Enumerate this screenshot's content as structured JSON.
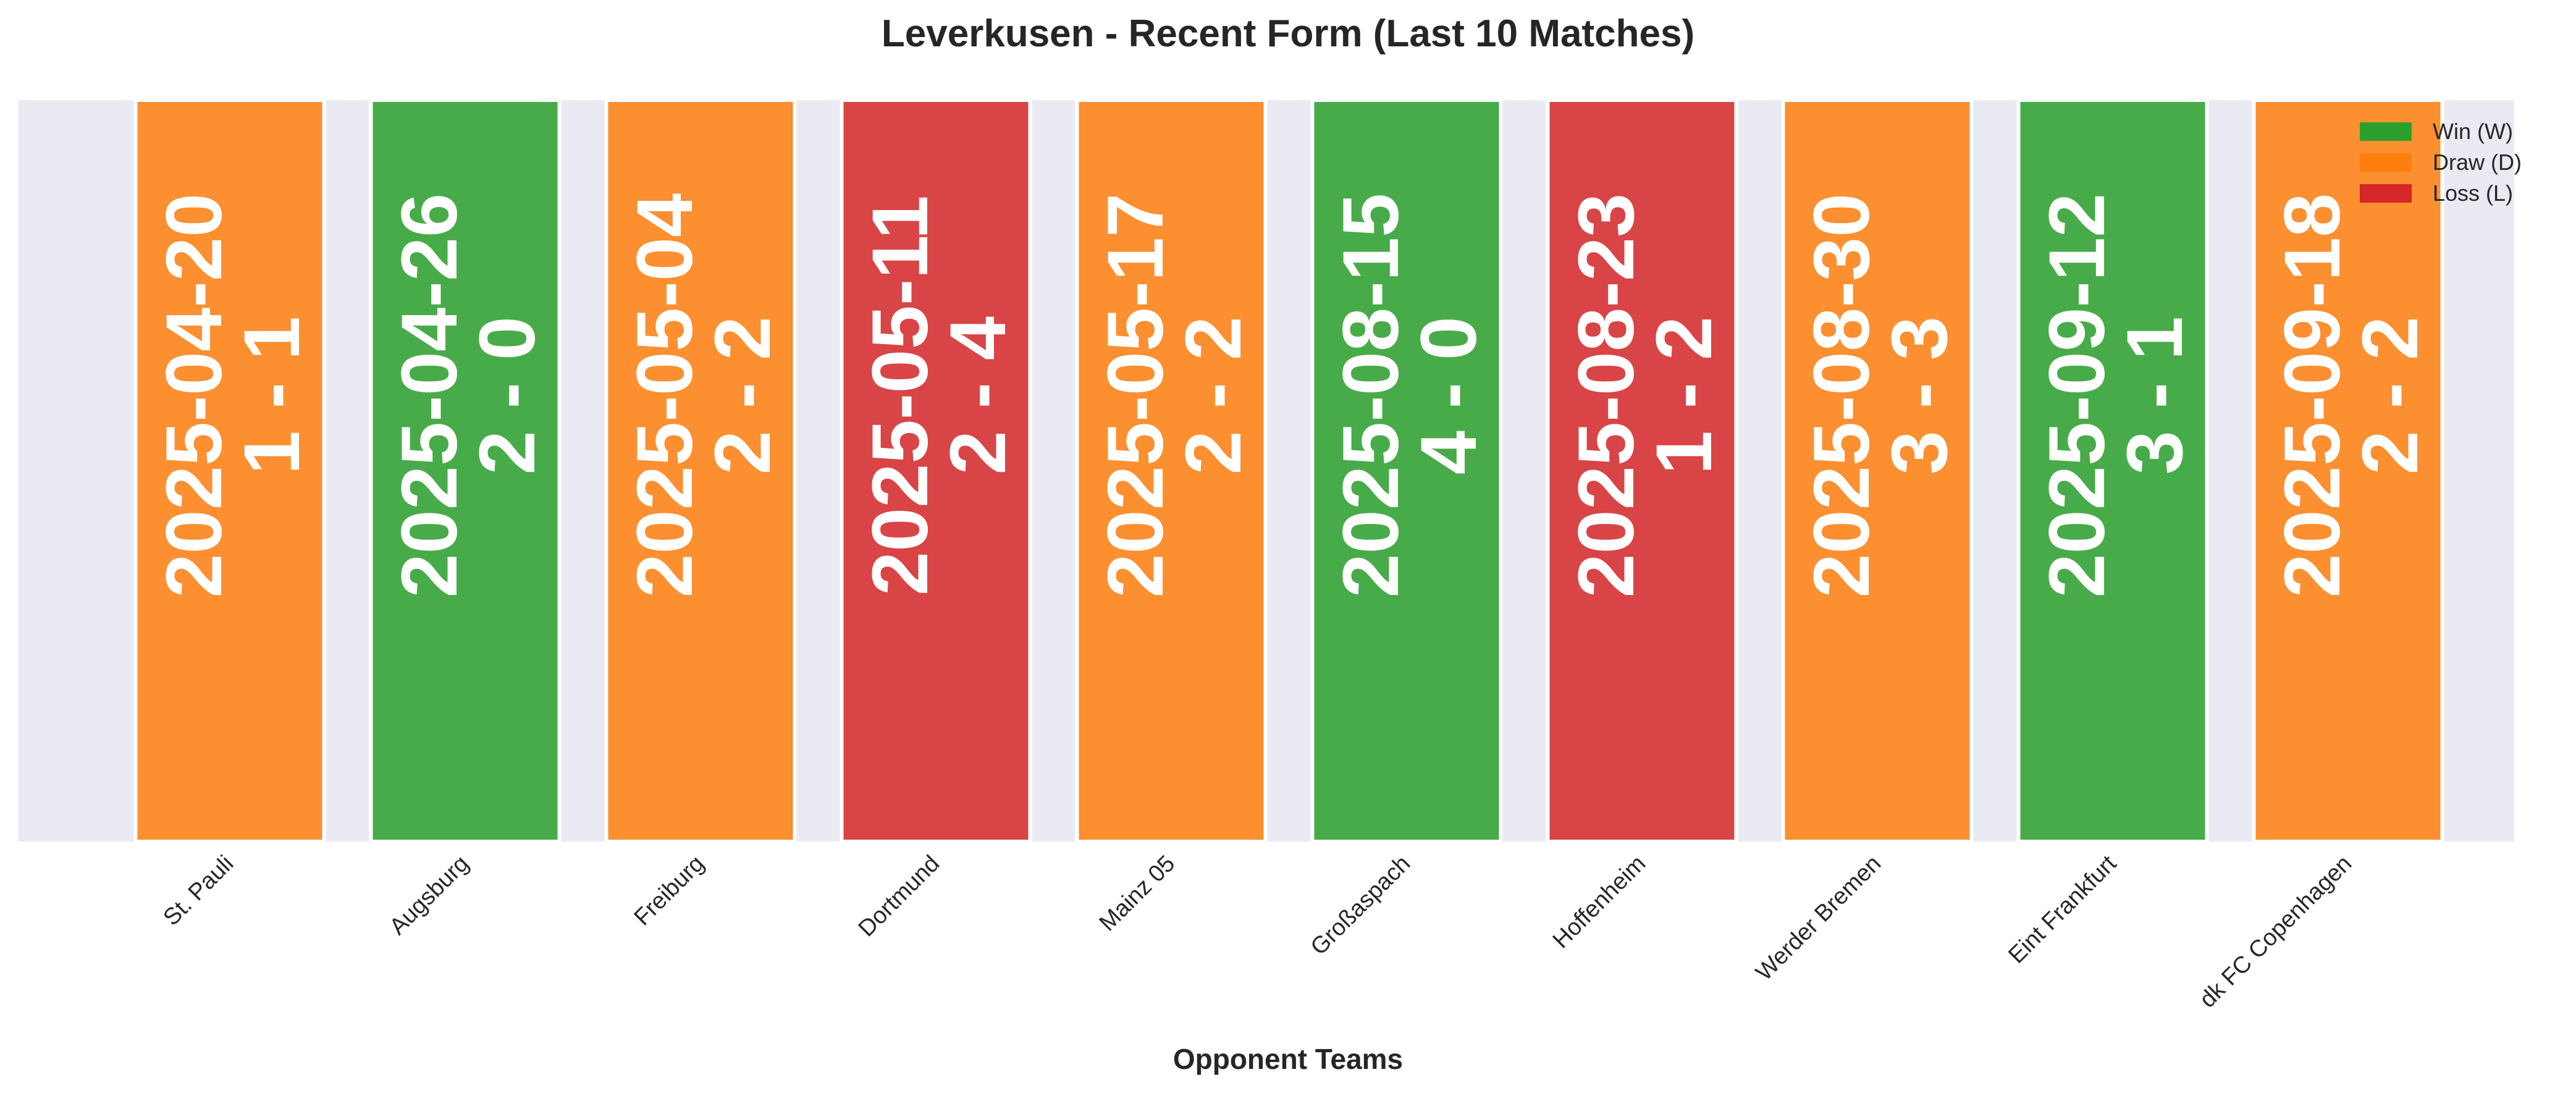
{
  "chart_data": {
    "type": "bar",
    "title": "Leverkusen - Recent Form (Last 10 Matches)",
    "xlabel": "Opponent Teams",
    "ylabel": "",
    "grid": false,
    "legend_position": "top-right",
    "categories": [
      "St. Pauli",
      "Augsburg",
      "Freiburg",
      "Dortmund",
      "Mainz 05",
      "Großaspach",
      "Hoffenheim",
      "Werder Bremen",
      "Eint Frankfurt",
      "dk FC Copenhagen"
    ],
    "matches": [
      {
        "opponent": "St. Pauli",
        "date": "2025-04-20",
        "score": "1 - 1",
        "result": "D"
      },
      {
        "opponent": "Augsburg",
        "date": "2025-04-26",
        "score": "2 - 0",
        "result": "W"
      },
      {
        "opponent": "Freiburg",
        "date": "2025-05-04",
        "score": "2 - 2",
        "result": "D"
      },
      {
        "opponent": "Dortmund",
        "date": "2025-05-11",
        "score": "2 - 4",
        "result": "L"
      },
      {
        "opponent": "Mainz 05",
        "date": "2025-05-17",
        "score": "2 - 2",
        "result": "D"
      },
      {
        "opponent": "Großaspach",
        "date": "2025-08-15",
        "score": "4 - 0",
        "result": "W"
      },
      {
        "opponent": "Hoffenheim",
        "date": "2025-08-23",
        "score": "1 - 2",
        "result": "L"
      },
      {
        "opponent": "Werder Bremen",
        "date": "2025-08-30",
        "score": "3 - 3",
        "result": "D"
      },
      {
        "opponent": "Eint Frankfurt",
        "date": "2025-09-12",
        "score": "3 - 1",
        "result": "W"
      },
      {
        "opponent": "dk FC Copenhagen",
        "date": "2025-09-18",
        "score": "2 - 2",
        "result": "D"
      }
    ],
    "legend": [
      {
        "key": "W",
        "label": "Win (W)",
        "color": "#2ca02c"
      },
      {
        "key": "D",
        "label": "Draw (D)",
        "color": "#ff7f0e"
      },
      {
        "key": "L",
        "label": "Loss (L)",
        "color": "#d62728"
      }
    ],
    "colors": {
      "plot_background": "#eaeaf2",
      "bar_edge": "#ffffff",
      "bar_text": "#ffffff",
      "text": "#262626"
    }
  }
}
